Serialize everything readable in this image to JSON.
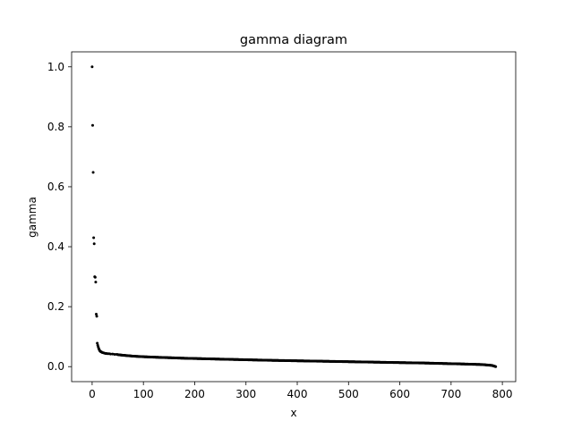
{
  "chart_data": {
    "type": "scatter",
    "title": "gamma diagram",
    "xlabel": "x",
    "ylabel": "gamma",
    "xlim": [
      -40,
      826
    ],
    "ylim": [
      -0.05,
      1.05
    ],
    "xticks": [
      0,
      100,
      200,
      300,
      400,
      500,
      600,
      700,
      800
    ],
    "yticks": [
      0.0,
      0.2,
      0.4,
      0.6,
      0.8,
      1.0
    ],
    "grid": false,
    "point_color": "#000000",
    "head_points": [
      [
        0,
        1.0
      ],
      [
        1,
        0.805
      ],
      [
        2,
        0.648
      ],
      [
        3,
        0.43
      ],
      [
        4,
        0.41
      ],
      [
        5,
        0.3
      ],
      [
        6,
        0.298
      ],
      [
        7,
        0.282
      ],
      [
        8,
        0.175
      ],
      [
        9,
        0.168
      ],
      [
        10,
        0.078
      ],
      [
        11,
        0.071
      ],
      [
        12,
        0.065
      ],
      [
        13,
        0.06
      ],
      [
        14,
        0.056
      ],
      [
        15,
        0.053
      ],
      [
        16,
        0.051
      ],
      [
        17,
        0.05
      ],
      [
        18,
        0.049
      ],
      [
        19,
        0.048
      ],
      [
        20,
        0.047
      ],
      [
        22,
        0.046
      ],
      [
        24,
        0.045
      ],
      [
        26,
        0.044
      ],
      [
        28,
        0.044
      ],
      [
        30,
        0.043
      ],
      [
        33,
        0.043
      ],
      [
        36,
        0.042
      ],
      [
        40,
        0.042
      ],
      [
        44,
        0.041
      ],
      [
        48,
        0.041
      ]
    ],
    "tail_range": [
      50,
      787
    ],
    "tail_anchors": [
      [
        50,
        0.04
      ],
      [
        60,
        0.038
      ],
      [
        80,
        0.035
      ],
      [
        100,
        0.033
      ],
      [
        130,
        0.031
      ],
      [
        180,
        0.028
      ],
      [
        250,
        0.025
      ],
      [
        350,
        0.021
      ],
      [
        450,
        0.018
      ],
      [
        550,
        0.015
      ],
      [
        650,
        0.012
      ],
      [
        720,
        0.009
      ],
      [
        760,
        0.007
      ],
      [
        780,
        0.004
      ],
      [
        787,
        0.0
      ]
    ]
  }
}
